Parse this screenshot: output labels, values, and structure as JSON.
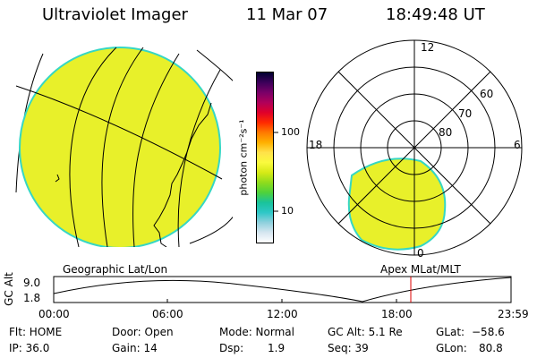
{
  "header": {
    "instrument": "Ultraviolet Imager",
    "date": "11 Mar 07",
    "time": "18:49:48 UT"
  },
  "colors": {
    "disc_fill": "#e8f02a",
    "disc_edge": "#36d7c4",
    "accent_red": "#dd0000"
  },
  "colorbar": {
    "unit_label": "photon cm⁻²s⁻¹",
    "tick_100": "100",
    "tick_10": "10",
    "stops": [
      "#ffffff",
      "#d6e6f0",
      "#8fd0dd",
      "#2ec7c7",
      "#19c39b",
      "#4fd23b",
      "#8fdc1d",
      "#d6ea16",
      "#fafa3e",
      "#ffe24a",
      "#ffb000",
      "#ff7a00",
      "#ff2a00",
      "#e0002a",
      "#b0005a",
      "#7a0068",
      "#3c005a",
      "#000030"
    ]
  },
  "polar": {
    "labels": {
      "top": "12",
      "left": "18",
      "right": "6",
      "bottom": "0"
    },
    "lat_labels": [
      "60",
      "70",
      "80"
    ]
  },
  "timeline": {
    "left_label_geo": "Geographic Lat/Lon",
    "right_label_apex": "Apex MLat/MLT",
    "axis_title": "GC Alt",
    "y_max": "9.0",
    "y_min": "1.8",
    "ticks": [
      "00:00",
      "06:00",
      "12:00",
      "18:00",
      "23:59"
    ]
  },
  "status": {
    "flt": "Flt: HOME",
    "ip": "IP: 36.0",
    "door": "Door: Open",
    "gain": "Gain: 14",
    "mode": "Mode: Normal",
    "dsp_label": "Dsp:",
    "dsp_val": "1.9",
    "gc_alt": "GC Alt: 5.1 Re",
    "seq": "Seq: 39",
    "glat_label": "GLat:",
    "glat_val": "−58.6",
    "glon_label": "GLon:",
    "glon_val": "80.8"
  }
}
